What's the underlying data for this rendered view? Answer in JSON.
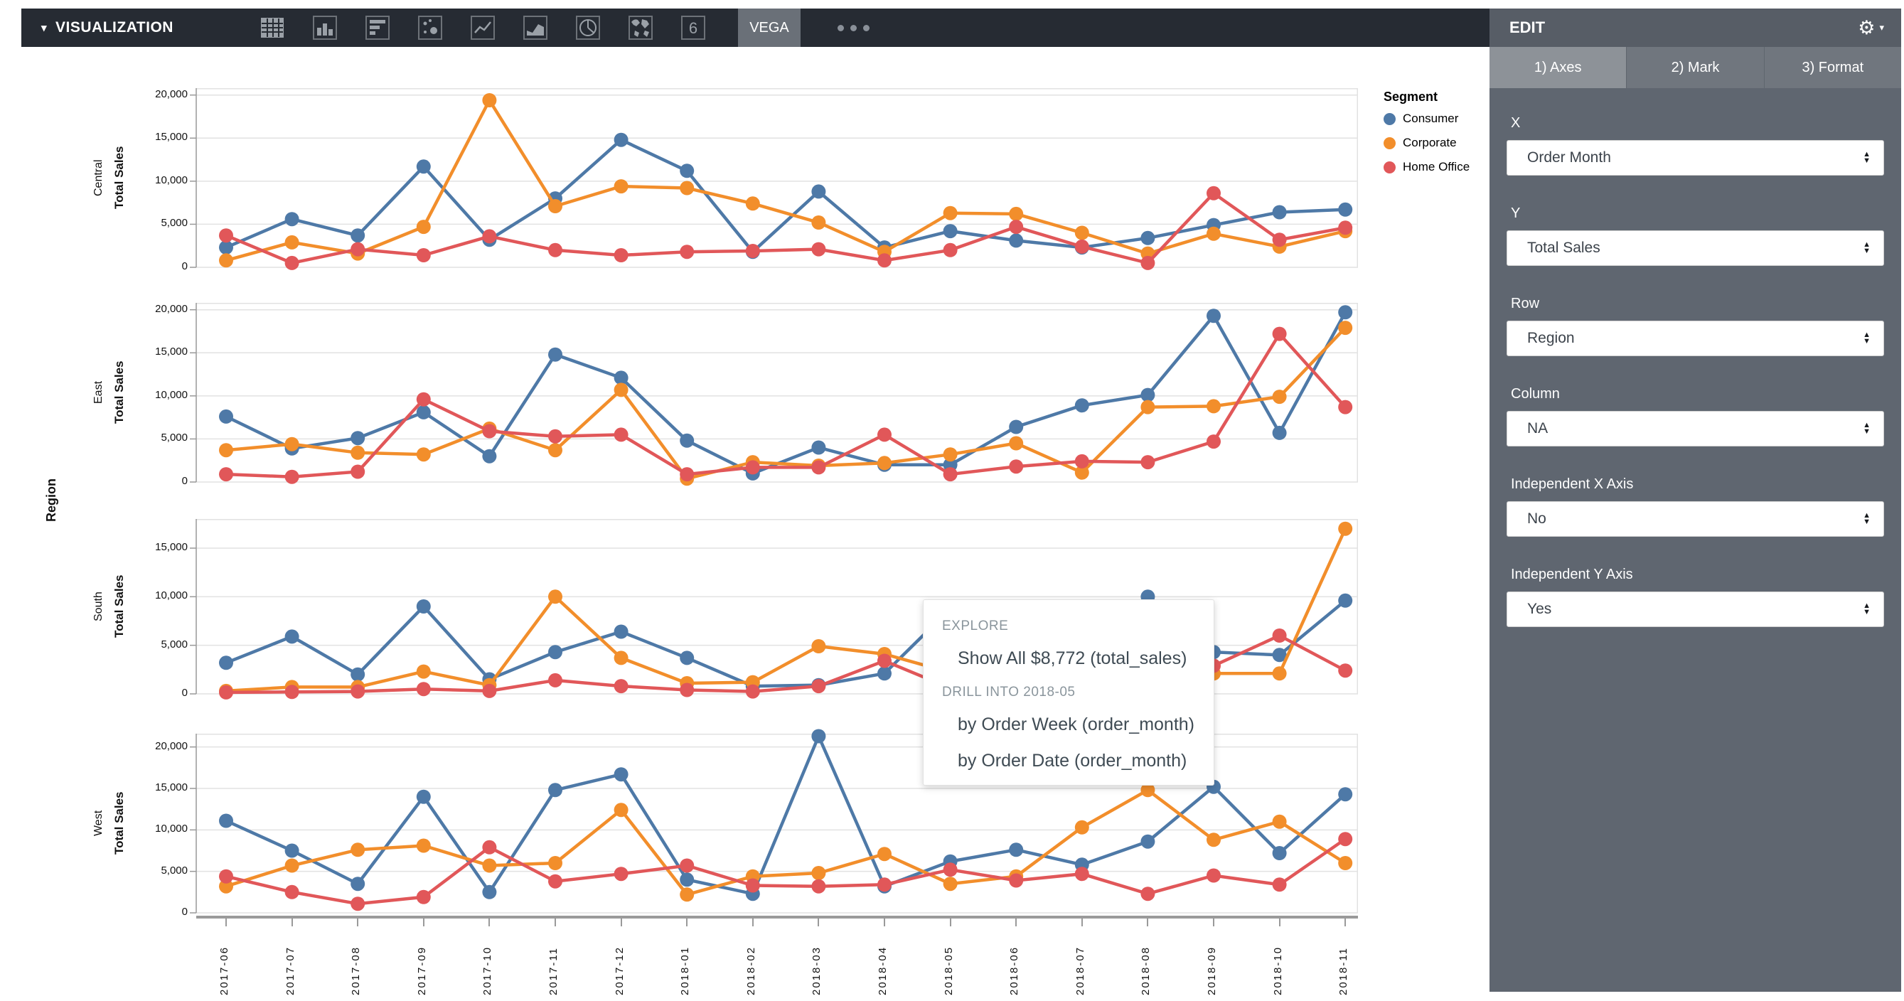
{
  "toolbar": {
    "title": "VISUALIZATION",
    "caret_icon": "▾",
    "icons": [
      "table",
      "bar-chart",
      "horizontal-bar-chart",
      "scatter-plot",
      "line-chart",
      "area-chart",
      "pie-chart",
      "map",
      "font-size-6"
    ],
    "vega_tab_label": "VEGA",
    "more_icon": "more-dots"
  },
  "panel": {
    "title": "EDIT",
    "gear_icon": "⚙",
    "gear_caret": "▾",
    "tabs": [
      "1) Axes",
      "2) Mark",
      "3) Format"
    ],
    "active_tab": "1) Axes",
    "fields": [
      {
        "label": "X",
        "value": "Order Month"
      },
      {
        "label": "Y",
        "value": "Total Sales"
      },
      {
        "label": "Row",
        "value": "Region"
      },
      {
        "label": "Column",
        "value": "NA"
      },
      {
        "label": "Independent X Axis",
        "value": "No"
      },
      {
        "label": "Independent Y Axis",
        "value": "Yes"
      }
    ]
  },
  "legend": {
    "title": "Segment",
    "items": [
      {
        "label": "Consumer",
        "color": "#4e79a7"
      },
      {
        "label": "Corporate",
        "color": "#f28e2b"
      },
      {
        "label": "Home Office",
        "color": "#e15759"
      }
    ]
  },
  "popup": {
    "section1": "EXPLORE",
    "show_all": "Show All $8,772 (total_sales)",
    "section2": "DRILL INTO 2018-05",
    "items": [
      "by Order Week (order_month)",
      "by Order Date (order_month)"
    ]
  },
  "chart_data": {
    "type": "line",
    "title": "",
    "xlabel": "",
    "ylabel": "Total Sales",
    "row_label": "Region",
    "legend_title": "Segment",
    "grid": true,
    "x": [
      "2017-06",
      "2017-07",
      "2017-08",
      "2017-09",
      "2017-10",
      "2017-11",
      "2017-12",
      "2018-01",
      "2018-02",
      "2018-03",
      "2018-04",
      "2018-05",
      "2018-06",
      "2018-07",
      "2018-08",
      "2018-09",
      "2018-10",
      "2018-11"
    ],
    "facets": [
      {
        "region": "Central",
        "ymax": 20800,
        "yticks": [
          0,
          5000,
          10000,
          15000,
          20000
        ],
        "series": [
          {
            "name": "Consumer",
            "color": "#4e79a7",
            "values": [
              2300,
              5600,
              3700,
              11700,
              3200,
              8000,
              14800,
              11200,
              1800,
              8800,
              2300,
              4200,
              3100,
              2300,
              3400,
              4900,
              6400,
              6700
            ]
          },
          {
            "name": "Corporate",
            "color": "#f28e2b",
            "values": [
              800,
              2900,
              1600,
              4700,
              19400,
              7100,
              9400,
              9200,
              7400,
              5200,
              1800,
              6300,
              6200,
              4000,
              1600,
              3900,
              2400,
              4200
            ]
          },
          {
            "name": "Home Office",
            "color": "#e15759",
            "values": [
              3700,
              500,
              2100,
              1400,
              3600,
              2000,
              1400,
              1800,
              1900,
              2100,
              800,
              2000,
              4700,
              2400,
              500,
              8600,
              3200,
              4600
            ]
          }
        ]
      },
      {
        "region": "East",
        "ymax": 20800,
        "yticks": [
          0,
          5000,
          10000,
          15000,
          20000
        ],
        "series": [
          {
            "name": "Consumer",
            "color": "#4e79a7",
            "values": [
              7600,
              3900,
              5100,
              8100,
              3000,
              14800,
              12100,
              4800,
              1000,
              4000,
              2000,
              2000,
              6400,
              8900,
              10100,
              19300,
              5700,
              19700
            ]
          },
          {
            "name": "Corporate",
            "color": "#f28e2b",
            "values": [
              3700,
              4400,
              3400,
              3200,
              6200,
              3700,
              10700,
              400,
              2300,
              1900,
              2200,
              3200,
              4500,
              1100,
              8700,
              8800,
              9900,
              17900
            ]
          },
          {
            "name": "Home Office",
            "color": "#e15759",
            "values": [
              900,
              600,
              1200,
              9600,
              5900,
              5300,
              5500,
              900,
              1700,
              1700,
              5500,
              900,
              1800,
              2400,
              2300,
              4700,
              17200,
              8700
            ]
          }
        ]
      },
      {
        "region": "South",
        "ymax": 18000,
        "yticks": [
          0,
          5000,
          10000,
          15000
        ],
        "series": [
          {
            "name": "Consumer",
            "color": "#4e79a7",
            "values": [
              3200,
              5900,
              2000,
              9000,
              1500,
              4300,
              6400,
              3700,
              800,
              900,
              2100,
              8772,
              2500,
              3500,
              10000,
              4300,
              4000,
              9600
            ]
          },
          {
            "name": "Corporate",
            "color": "#f28e2b",
            "values": [
              300,
              700,
              700,
              2300,
              900,
              10000,
              3700,
              1100,
              1200,
              4900,
              4100,
              2200,
              1500,
              1300,
              1700,
              2100,
              2100,
              17000
            ]
          },
          {
            "name": "Home Office",
            "color": "#e15759",
            "values": [
              150,
              200,
              250,
              500,
              300,
              1400,
              800,
              400,
              250,
              800,
              3400,
              600,
              900,
              1600,
              1800,
              2900,
              6000,
              2400
            ]
          }
        ]
      },
      {
        "region": "West",
        "ymax": 21600,
        "yticks": [
          0,
          5000,
          10000,
          15000,
          20000
        ],
        "series": [
          {
            "name": "Consumer",
            "color": "#4e79a7",
            "values": [
              11100,
              7500,
              3500,
              14000,
              2500,
              14800,
              16700,
              4000,
              2300,
              21300,
              3200,
              6200,
              7600,
              5800,
              8600,
              15200,
              7200,
              14300
            ]
          },
          {
            "name": "Corporate",
            "color": "#f28e2b",
            "values": [
              3200,
              5700,
              7600,
              8100,
              5700,
              6000,
              12400,
              2200,
              4400,
              4800,
              7100,
              3500,
              4400,
              10300,
              14800,
              8800,
              11000,
              6000
            ]
          },
          {
            "name": "Home Office",
            "color": "#e15759",
            "values": [
              4400,
              2500,
              1100,
              1900,
              7900,
              3800,
              4700,
              5700,
              3300,
              3200,
              3400,
              5200,
              3900,
              4700,
              2300,
              4500,
              3400,
              8900
            ]
          }
        ]
      }
    ]
  }
}
